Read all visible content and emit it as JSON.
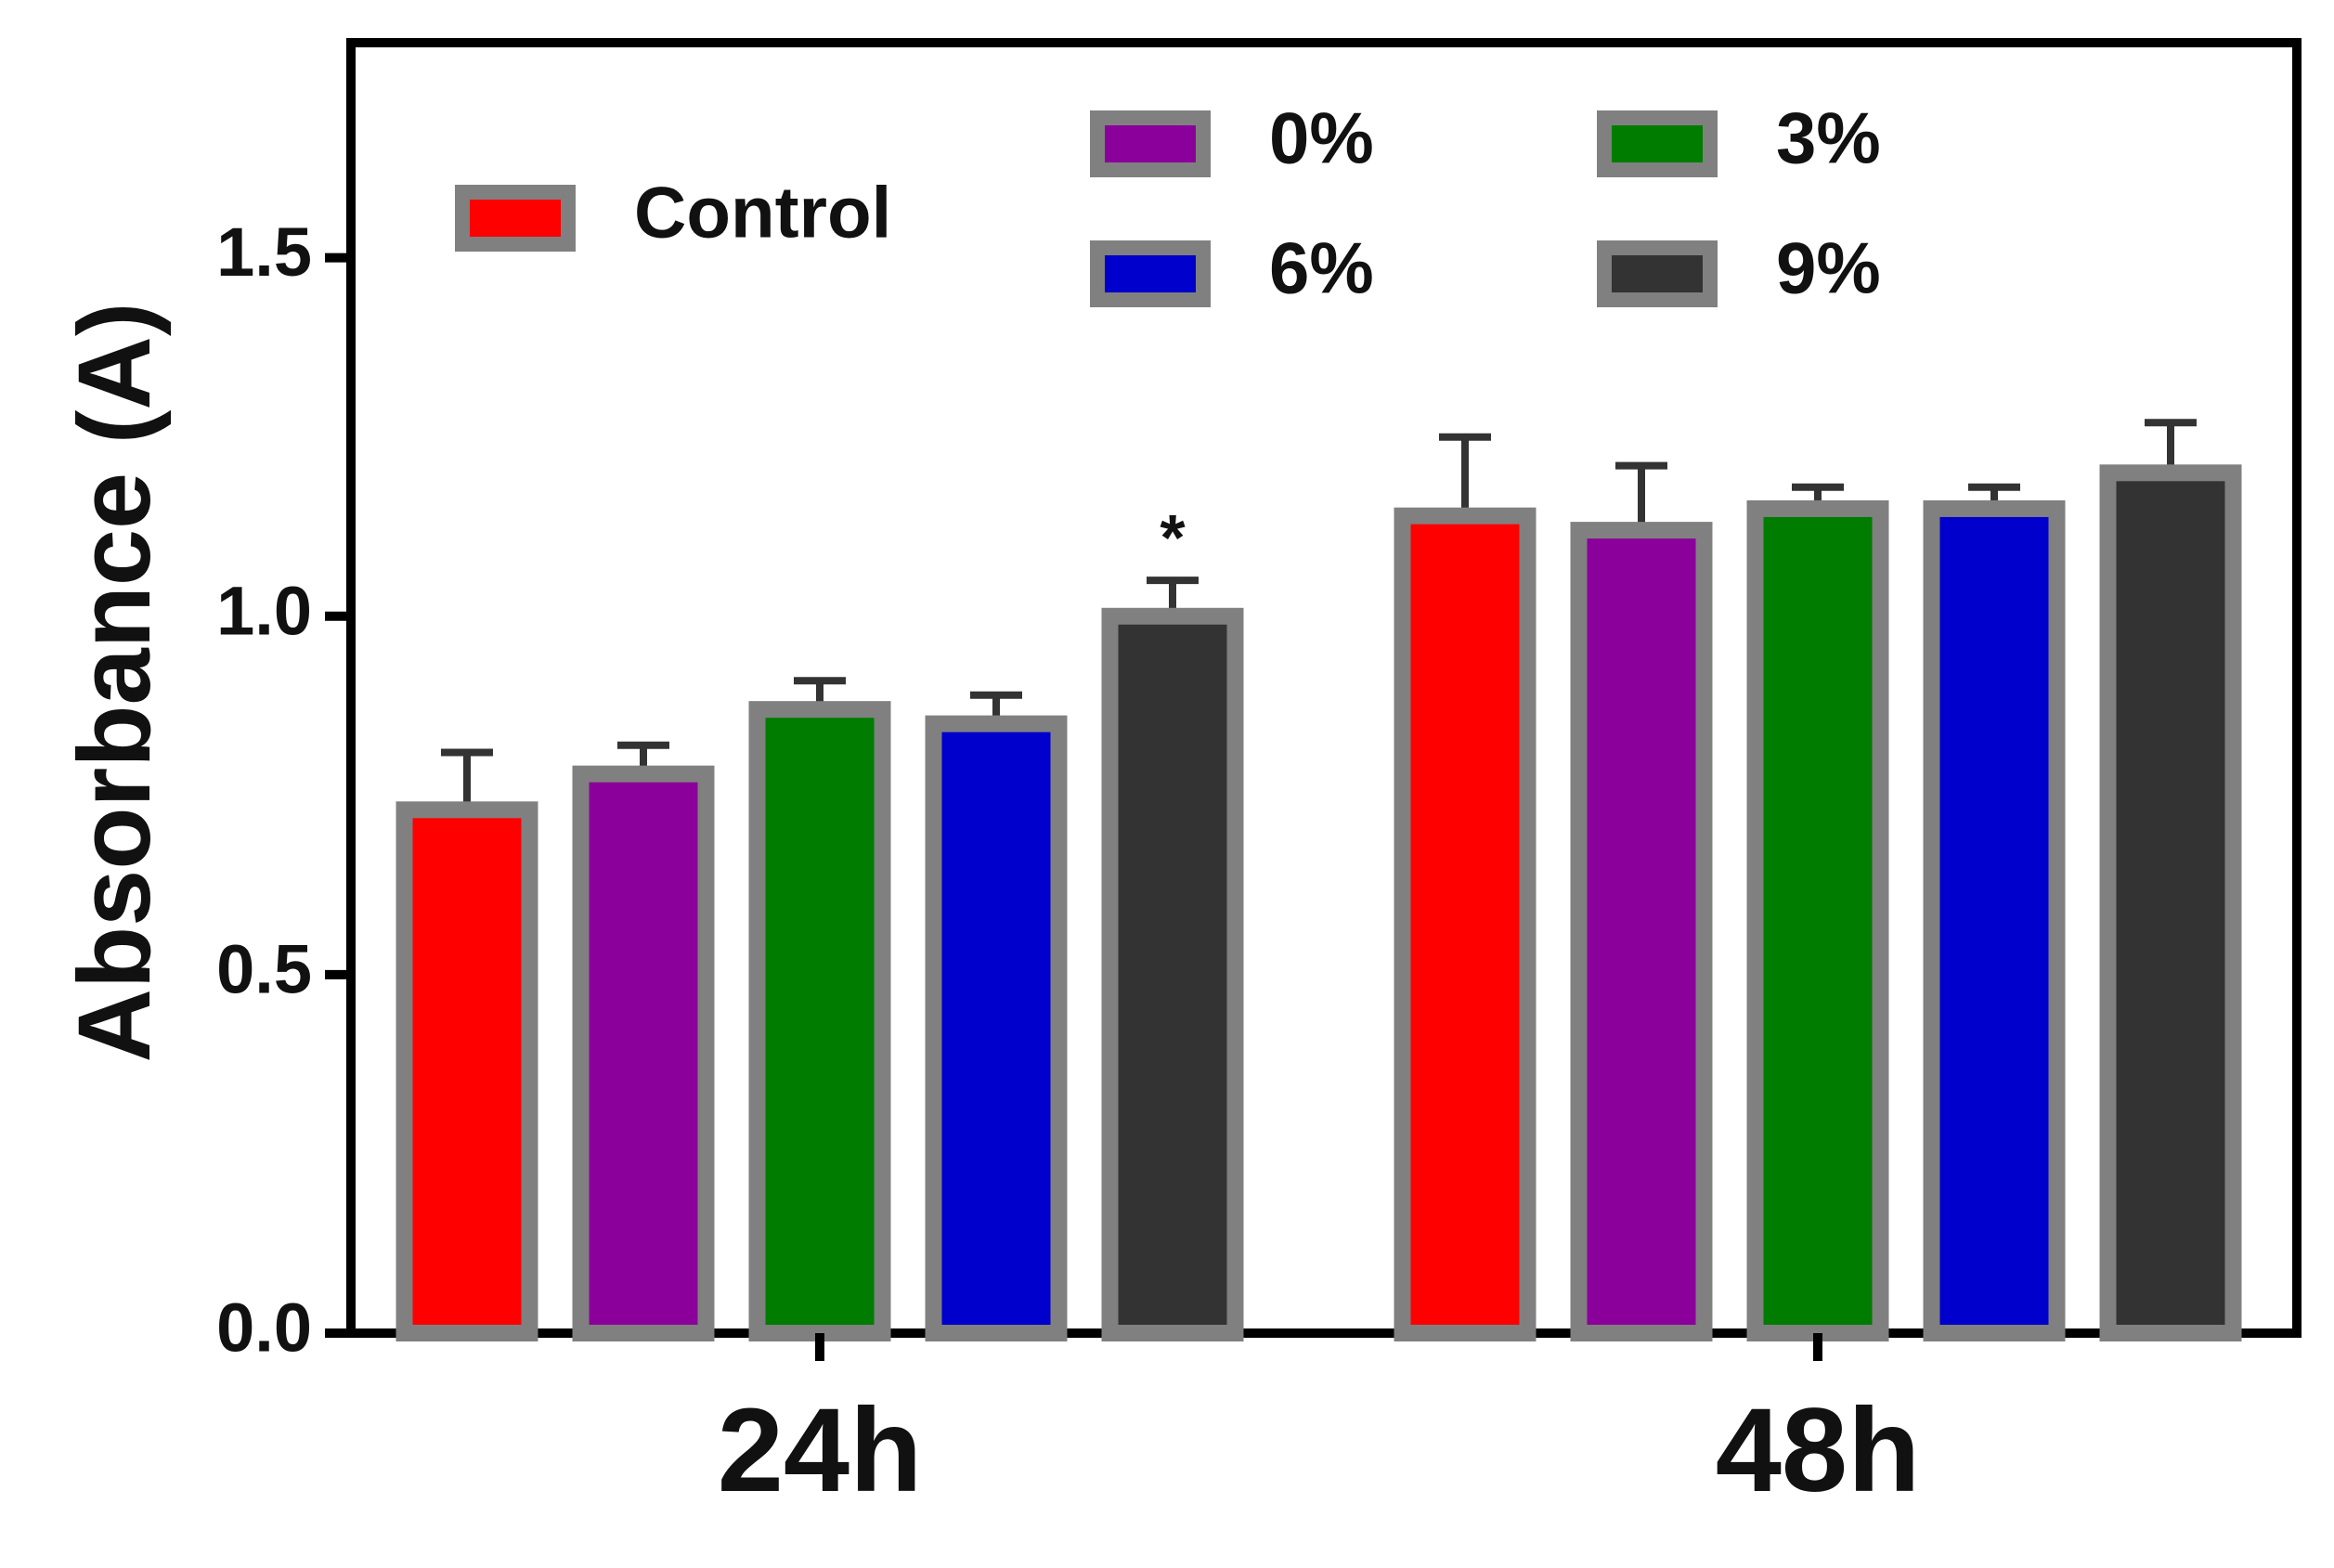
{
  "chart_data": {
    "type": "bar",
    "title": "",
    "xlabel": "",
    "ylabel": "Absorbance (A)",
    "ylim": [
      0,
      1.8
    ],
    "yticks": [
      0.0,
      0.5,
      1.0,
      1.5
    ],
    "ytick_labels": [
      "0.0",
      "0.5",
      "1.0",
      "1.5"
    ],
    "grid": false,
    "legend_position": "top",
    "categories": [
      "24h",
      "48h"
    ],
    "series": [
      {
        "name": "Control",
        "color": "#ff0000",
        "values": [
          0.73,
          1.14
        ],
        "errors": [
          0.08,
          0.11
        ]
      },
      {
        "name": "0%",
        "color": "#8b009b",
        "values": [
          0.78,
          1.12
        ],
        "errors": [
          0.04,
          0.09
        ]
      },
      {
        "name": "3%",
        "color": "#007d00",
        "values": [
          0.87,
          1.15
        ],
        "errors": [
          0.04,
          0.03
        ]
      },
      {
        "name": "6%",
        "color": "#0000cc",
        "values": [
          0.85,
          1.15
        ],
        "errors": [
          0.04,
          0.03
        ]
      },
      {
        "name": "9%",
        "color": "#333333",
        "values": [
          1.0,
          1.2
        ],
        "errors": [
          0.05,
          0.07
        ]
      }
    ],
    "bar_edge_color": "#808080",
    "annotations": [
      {
        "text": "*",
        "category": "24h",
        "series": "9%"
      }
    ]
  }
}
